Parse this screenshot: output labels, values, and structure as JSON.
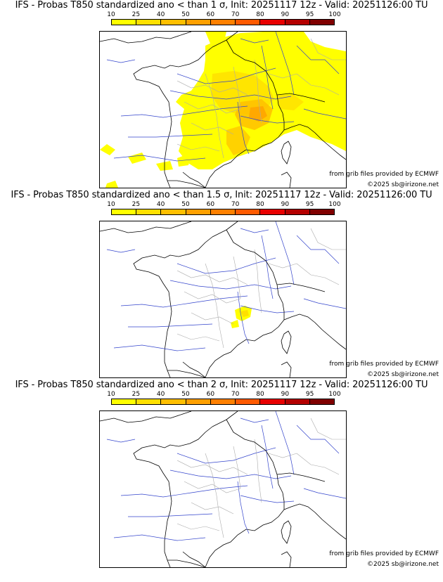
{
  "legend": {
    "labels": [
      "10",
      "25",
      "40",
      "50",
      "60",
      "70",
      "80",
      "90",
      "95",
      "100"
    ],
    "colors": [
      "#ffff00",
      "#ffe000",
      "#ffbf00",
      "#ffa000",
      "#ff8000",
      "#ff5a00",
      "#e80000",
      "#b40000",
      "#800000",
      "#4a0000"
    ]
  },
  "panels": [
    {
      "title": "IFS - Probas T850  standardized ano < than 1 σ, Init: 20251117 12z - Valid: 20251126:00 TU",
      "credit_source": "from grib files provided by ECMWF",
      "credit_copyright": "©2025 sb@irizone.net",
      "coverage_level": "high"
    },
    {
      "title": "IFS - Probas T850  standardized ano < than 1.5 σ, Init: 20251117 12z - Valid: 20251126:00 TU",
      "credit_source": "from grib files provided by ECMWF",
      "credit_copyright": "©2025 sb@irizone.net",
      "coverage_level": "low"
    },
    {
      "title": "IFS - Probas T850  standardized ano < than 2 σ, Init: 20251117 12z - Valid: 20251126:00 TU",
      "credit_source": "from grib files provided by ECMWF",
      "credit_copyright": "©2025 sb@irizone.net",
      "coverage_level": "none"
    }
  ]
}
